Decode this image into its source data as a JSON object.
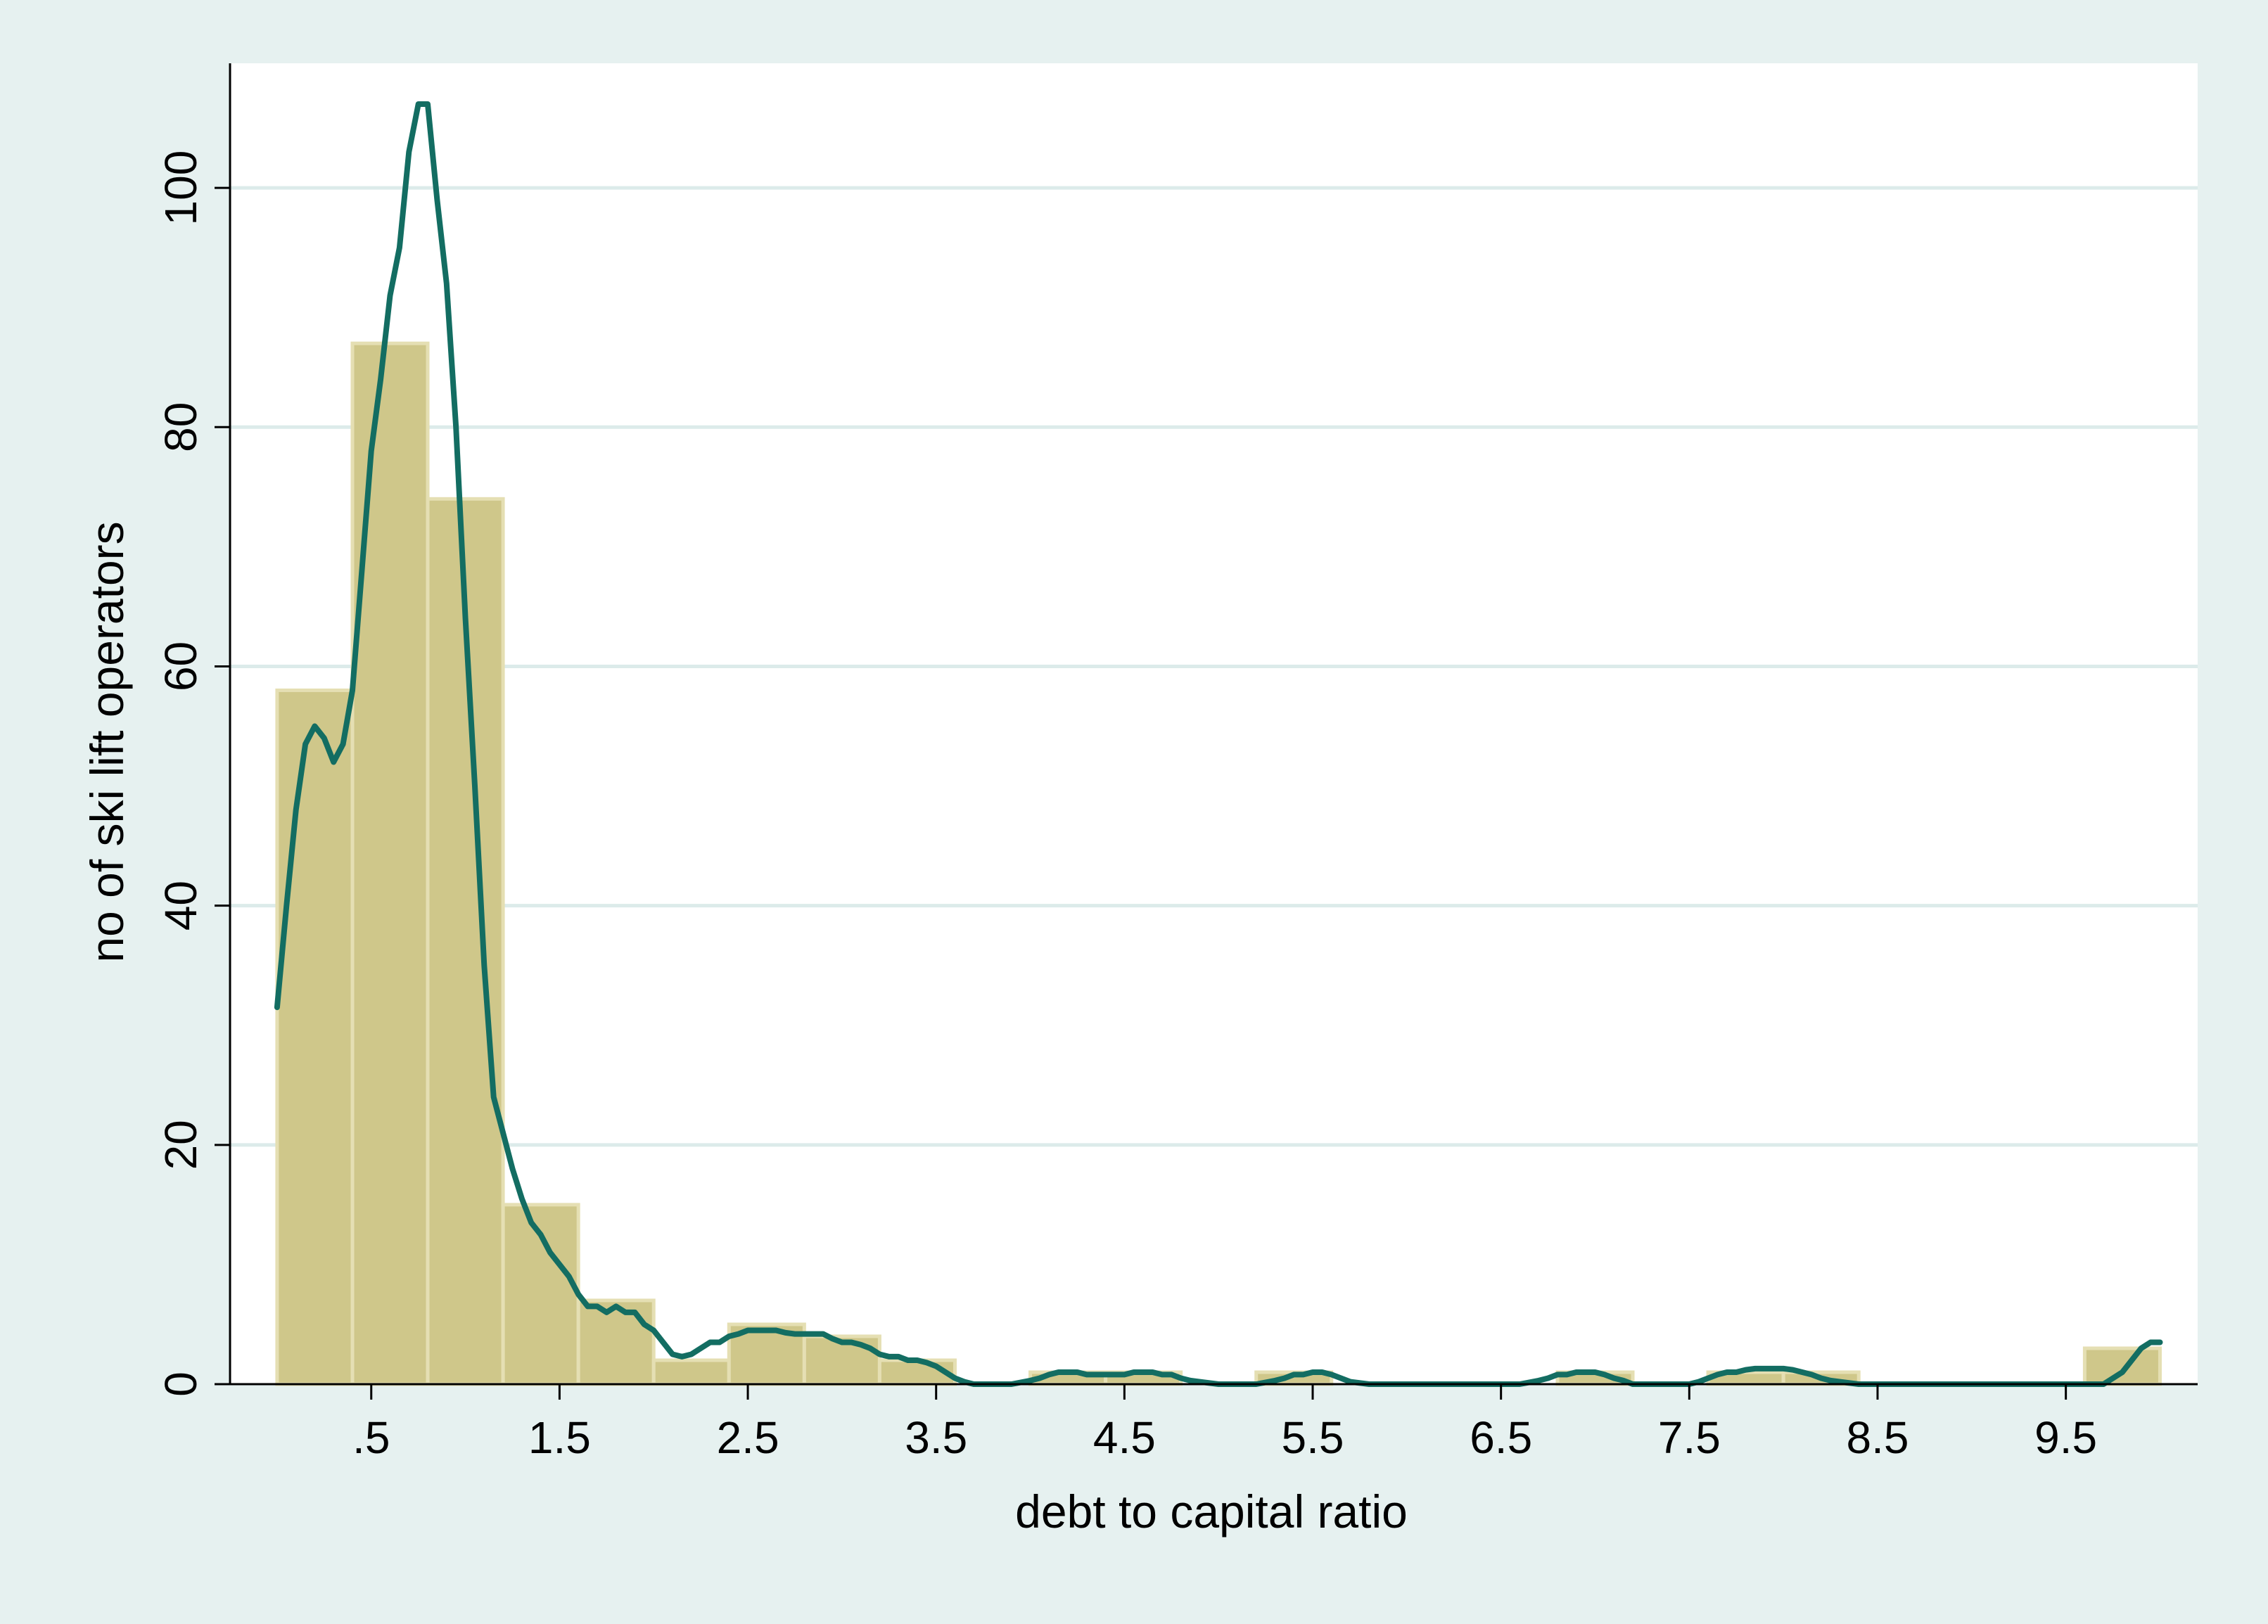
{
  "chart_data": {
    "type": "bar",
    "subtype": "histogram with density overlay",
    "title": "",
    "xlabel": "debt to capital ratio",
    "ylabel": "no of ski lift operators",
    "xlim": [
      -0.25,
      10.2
    ],
    "ylim": [
      0,
      107
    ],
    "x_ticks": [
      {
        "value": 0.5,
        "label": ".5"
      },
      {
        "value": 1.5,
        "label": "1.5"
      },
      {
        "value": 2.5,
        "label": "2.5"
      },
      {
        "value": 3.5,
        "label": "3.5"
      },
      {
        "value": 4.5,
        "label": "4.5"
      },
      {
        "value": 5.5,
        "label": "5.5"
      },
      {
        "value": 6.5,
        "label": "6.5"
      },
      {
        "value": 7.5,
        "label": "7.5"
      },
      {
        "value": 8.5,
        "label": "8.5"
      },
      {
        "value": 9.5,
        "label": "9.5"
      }
    ],
    "y_ticks": [
      {
        "value": 0,
        "label": "0"
      },
      {
        "value": 20,
        "label": "20"
      },
      {
        "value": 40,
        "label": "40"
      },
      {
        "value": 60,
        "label": "60"
      },
      {
        "value": 80,
        "label": "80"
      },
      {
        "value": 100,
        "label": "100"
      }
    ],
    "grid": "horizontal",
    "legend": "none",
    "bins": [
      {
        "x0": 0.0,
        "x1": 0.4,
        "count": 58
      },
      {
        "x0": 0.4,
        "x1": 0.8,
        "count": 87
      },
      {
        "x0": 0.8,
        "x1": 1.2,
        "count": 74
      },
      {
        "x0": 1.2,
        "x1": 1.6,
        "count": 15
      },
      {
        "x0": 1.6,
        "x1": 2.0,
        "count": 7
      },
      {
        "x0": 2.0,
        "x1": 2.4,
        "count": 2
      },
      {
        "x0": 2.4,
        "x1": 2.8,
        "count": 5
      },
      {
        "x0": 2.8,
        "x1": 3.2,
        "count": 4
      },
      {
        "x0": 3.2,
        "x1": 3.6,
        "count": 2
      },
      {
        "x0": 4.0,
        "x1": 4.4,
        "count": 1
      },
      {
        "x0": 4.4,
        "x1": 4.8,
        "count": 1
      },
      {
        "x0": 5.2,
        "x1": 5.6,
        "count": 1
      },
      {
        "x0": 6.8,
        "x1": 7.2,
        "count": 1
      },
      {
        "x0": 7.6,
        "x1": 8.0,
        "count": 1
      },
      {
        "x0": 8.0,
        "x1": 8.4,
        "count": 1
      },
      {
        "x0": 9.6,
        "x1": 10.0,
        "count": 3
      }
    ],
    "density_curve": {
      "x": [
        0.0,
        0.05,
        0.1,
        0.15,
        0.2,
        0.25,
        0.3,
        0.35,
        0.4,
        0.45,
        0.5,
        0.55,
        0.6,
        0.65,
        0.7,
        0.75,
        0.8,
        0.85,
        0.9,
        0.95,
        1.0,
        1.05,
        1.1,
        1.15,
        1.2,
        1.25,
        1.3,
        1.35,
        1.4,
        1.45,
        1.5,
        1.55,
        1.6,
        1.65,
        1.7,
        1.75,
        1.8,
        1.85,
        1.9,
        1.95,
        2.0,
        2.05,
        2.1,
        2.15,
        2.2,
        2.25,
        2.3,
        2.35,
        2.4,
        2.45,
        2.5,
        2.55,
        2.6,
        2.65,
        2.7,
        2.75,
        2.8,
        2.85,
        2.9,
        2.95,
        3.0,
        3.05,
        3.1,
        3.15,
        3.2,
        3.25,
        3.3,
        3.35,
        3.4,
        3.45,
        3.5,
        3.55,
        3.6,
        3.65,
        3.7,
        3.8,
        3.9,
        4.0,
        4.05,
        4.1,
        4.15,
        4.2,
        4.25,
        4.3,
        4.35,
        4.4,
        4.45,
        4.5,
        4.55,
        4.6,
        4.65,
        4.7,
        4.75,
        4.8,
        4.85,
        4.9,
        5.0,
        5.1,
        5.2,
        5.3,
        5.35,
        5.4,
        5.45,
        5.5,
        5.55,
        5.6,
        5.65,
        5.7,
        5.8,
        6.0,
        6.2,
        6.4,
        6.6,
        6.7,
        6.75,
        6.8,
        6.85,
        6.9,
        6.95,
        7.0,
        7.05,
        7.1,
        7.15,
        7.2,
        7.3,
        7.4,
        7.5,
        7.55,
        7.6,
        7.65,
        7.7,
        7.75,
        7.8,
        7.85,
        7.9,
        7.95,
        8.0,
        8.05,
        8.1,
        8.15,
        8.2,
        8.25,
        8.3,
        8.4,
        8.6,
        8.8,
        9.0,
        9.2,
        9.4,
        9.6,
        9.7,
        9.75,
        9.8,
        9.85,
        9.9,
        9.95,
        10.0
      ],
      "y": [
        31.5,
        40,
        48,
        53.5,
        55,
        54,
        52,
        53.5,
        58,
        68,
        78,
        84,
        91,
        95,
        103,
        107,
        107,
        99,
        92,
        80,
        64,
        50,
        35,
        24,
        21,
        18,
        15.5,
        13.5,
        12.5,
        11,
        10,
        9,
        7.5,
        6.5,
        6.5,
        6,
        6.5,
        6,
        6,
        5,
        4.5,
        3.5,
        2.5,
        2.3,
        2.5,
        3,
        3.5,
        3.5,
        4,
        4.2,
        4.5,
        4.5,
        4.5,
        4.5,
        4.3,
        4.2,
        4.2,
        4.2,
        4.2,
        3.8,
        3.5,
        3.5,
        3.3,
        3,
        2.5,
        2.3,
        2.3,
        2,
        2,
        1.8,
        1.5,
        1,
        0.5,
        0.2,
        0,
        0,
        0,
        0.3,
        0.5,
        0.8,
        1,
        1,
        1,
        0.8,
        0.8,
        0.8,
        0.8,
        0.8,
        1,
        1,
        1,
        0.8,
        0.8,
        0.5,
        0.3,
        0.2,
        0,
        0,
        0,
        0.3,
        0.5,
        0.8,
        0.8,
        1,
        1,
        0.8,
        0.5,
        0.2,
        0,
        0,
        0,
        0,
        0,
        0.3,
        0.5,
        0.8,
        0.8,
        1,
        1,
        1,
        0.8,
        0.5,
        0.3,
        0,
        0,
        0,
        0,
        0.2,
        0.5,
        0.8,
        1,
        1,
        1.2,
        1.3,
        1.3,
        1.3,
        1.3,
        1.2,
        1,
        0.8,
        0.5,
        0.3,
        0.2,
        0,
        0,
        0,
        0,
        0,
        0,
        0,
        0,
        0.5,
        1,
        2,
        3,
        3.5,
        3.5
      ]
    },
    "colors": {
      "outer_background": "#e6f1f0",
      "plot_background": "#ffffff",
      "gridline": "#dcebea",
      "bar_fill": "#cfc78a",
      "bar_edge": "#e5dfb3",
      "density_line": "#136d62",
      "axis": "#000000"
    }
  }
}
